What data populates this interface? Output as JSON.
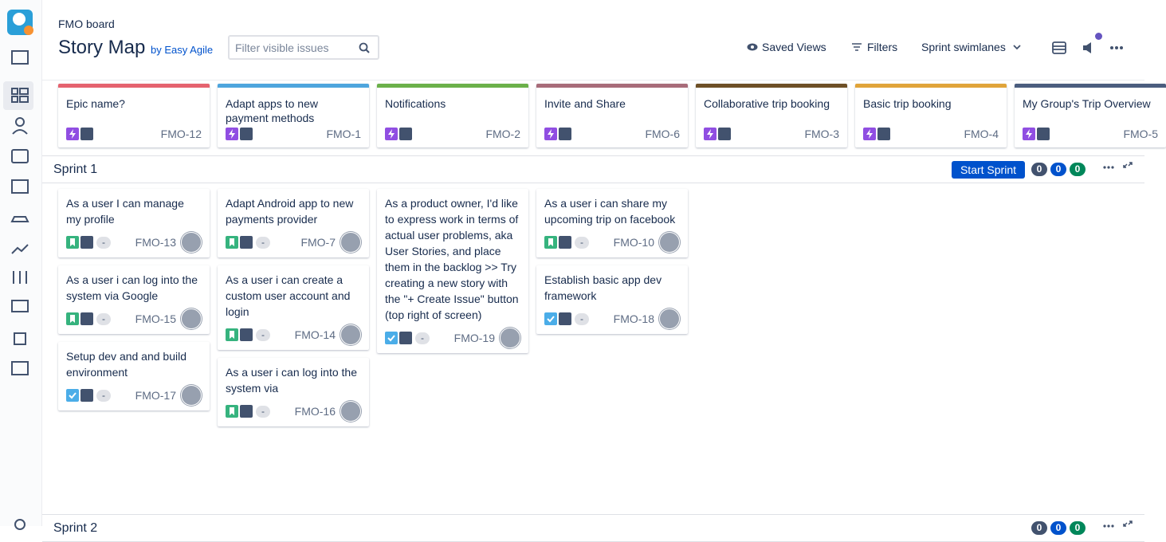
{
  "header": {
    "board": "FMO board",
    "title": "Story Map",
    "by": "by Easy Agile",
    "search_placeholder": "Filter visible issues",
    "saved_views": "Saved Views",
    "filters": "Filters",
    "swimlanes": "Sprint swimlanes"
  },
  "epics": [
    {
      "name": "Epic name?",
      "key": "FMO-12",
      "color": "#e5636f"
    },
    {
      "name": "Adapt apps to new payment methods",
      "key": "FMO-1",
      "color": "#4ea5dd"
    },
    {
      "name": "Notifications",
      "key": "FMO-2",
      "color": "#6bb04a"
    },
    {
      "name": "Invite and Share",
      "key": "FMO-6",
      "color": "#a86c7a"
    },
    {
      "name": "Collaborative trip booking",
      "key": "FMO-3",
      "color": "#6e5027"
    },
    {
      "name": "Basic trip booking",
      "key": "FMO-4",
      "color": "#e0a43a"
    },
    {
      "name": "My Group's Trip Overview",
      "key": "FMO-5",
      "color": "#4b5d7e"
    }
  ],
  "sprints": [
    {
      "name": "Sprint 1",
      "button": "Start Sprint",
      "counts": [
        0,
        0,
        0
      ],
      "columns": [
        [
          {
            "text": "As a user I can manage my profile",
            "key": "FMO-13",
            "type": "story",
            "estimate": "-"
          },
          {
            "text": "As a user i can log into the system via Google",
            "key": "FMO-15",
            "type": "story",
            "estimate": "-"
          },
          {
            "text": "Setup dev and and build environment",
            "key": "FMO-17",
            "type": "task",
            "estimate": "-"
          }
        ],
        [
          {
            "text": "Adapt Android app to new payments provider",
            "key": "FMO-7",
            "type": "story",
            "estimate": "-"
          },
          {
            "text": "As a user i can create a custom user account and login",
            "key": "FMO-14",
            "type": "story",
            "estimate": "-"
          },
          {
            "text": "As a user i can log into the system via",
            "key": "FMO-16",
            "type": "story",
            "estimate": "-"
          }
        ],
        [
          {
            "text": "As a product owner, I'd like to express work in terms of actual user problems, aka User Stories, and place them in the backlog >> Try creating a new story with the \"+ Create Issue\" button (top right of screen)",
            "key": "FMO-19",
            "type": "task",
            "estimate": "-"
          }
        ],
        [
          {
            "text": "As a user i can share my upcoming trip on facebook",
            "key": "FMO-10",
            "type": "story",
            "estimate": "-"
          },
          {
            "text": "Establish basic app dev framework",
            "key": "FMO-18",
            "type": "task",
            "estimate": "-"
          }
        ]
      ]
    },
    {
      "name": "Sprint 2",
      "counts": [
        0,
        0,
        0
      ],
      "columns": []
    }
  ]
}
